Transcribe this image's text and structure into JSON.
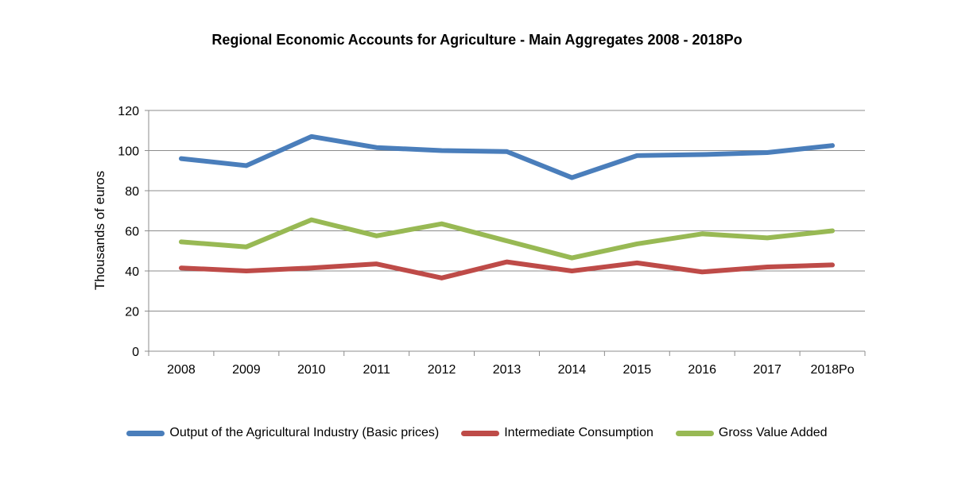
{
  "chart_data": {
    "type": "line",
    "title": "Regional Economic Accounts for Agriculture - Main Aggregates 2008 - 2018Po",
    "ylabel": "Thousands of euros",
    "xlabel": "",
    "categories": [
      "2008",
      "2009",
      "2010",
      "2011",
      "2012",
      "2013",
      "2014",
      "2015",
      "2016",
      "2017",
      "2018Po"
    ],
    "ylim": [
      0,
      120
    ],
    "yticks": [
      0,
      20,
      40,
      60,
      80,
      100,
      120
    ],
    "grid": true,
    "legend_position": "bottom",
    "series": [
      {
        "name": "Output of the Agricultural Industry (Basic prices)",
        "color": "#4a7ebb",
        "values": [
          96,
          92.5,
          107,
          101.5,
          100,
          99.5,
          86.5,
          97.5,
          98,
          99,
          102.5
        ]
      },
      {
        "name": "Intermediate Consumption",
        "color": "#be4b48",
        "values": [
          41.5,
          40,
          41.5,
          43.5,
          36.5,
          44.5,
          40,
          44,
          39.5,
          42,
          43
        ]
      },
      {
        "name": "Gross Value Added",
        "color": "#98b954",
        "values": [
          54.5,
          52,
          65.5,
          57.5,
          63.5,
          55,
          46.5,
          53.5,
          58.5,
          56.5,
          60
        ]
      }
    ]
  }
}
